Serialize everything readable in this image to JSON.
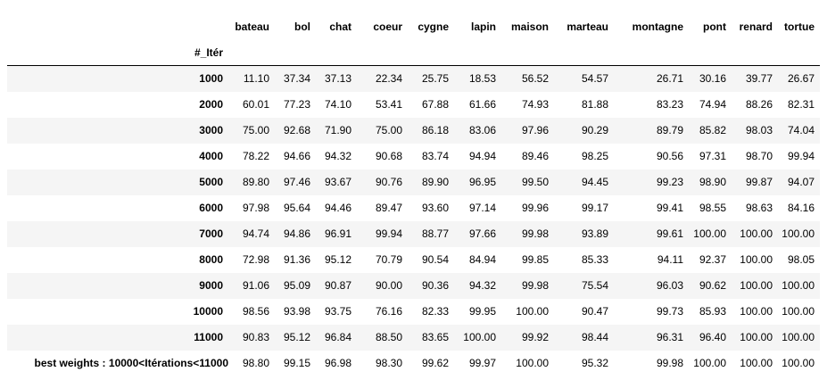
{
  "table": {
    "index_name": "#_Itér",
    "columns": [
      "bateau",
      "bol",
      "chat",
      "coeur",
      "cygne",
      "lapin",
      "maison",
      "marteau",
      "montagne",
      "pont",
      "renard",
      "tortue"
    ],
    "rows": [
      {
        "index": "1000",
        "values": [
          "11.10",
          "37.34",
          "37.13",
          "22.34",
          "25.75",
          "18.53",
          "56.52",
          "54.57",
          "26.71",
          "30.16",
          "39.77",
          "26.67"
        ]
      },
      {
        "index": "2000",
        "values": [
          "60.01",
          "77.23",
          "74.10",
          "53.41",
          "67.88",
          "61.66",
          "74.93",
          "81.88",
          "83.23",
          "74.94",
          "88.26",
          "82.31"
        ]
      },
      {
        "index": "3000",
        "values": [
          "75.00",
          "92.68",
          "71.90",
          "75.00",
          "86.18",
          "83.06",
          "97.96",
          "90.29",
          "89.79",
          "85.82",
          "98.03",
          "74.04"
        ]
      },
      {
        "index": "4000",
        "values": [
          "78.22",
          "94.66",
          "94.32",
          "90.68",
          "83.74",
          "94.94",
          "89.46",
          "98.25",
          "90.56",
          "97.31",
          "98.70",
          "99.94"
        ]
      },
      {
        "index": "5000",
        "values": [
          "89.80",
          "97.46",
          "93.67",
          "90.76",
          "89.90",
          "96.95",
          "99.50",
          "94.45",
          "99.23",
          "98.90",
          "99.87",
          "94.07"
        ]
      },
      {
        "index": "6000",
        "values": [
          "97.98",
          "95.64",
          "94.46",
          "89.47",
          "93.60",
          "97.14",
          "99.96",
          "99.17",
          "99.41",
          "98.55",
          "98.63",
          "84.16"
        ]
      },
      {
        "index": "7000",
        "values": [
          "94.74",
          "94.86",
          "96.91",
          "99.94",
          "88.77",
          "97.66",
          "99.98",
          "93.89",
          "99.61",
          "100.00",
          "100.00",
          "100.00"
        ]
      },
      {
        "index": "8000",
        "values": [
          "72.98",
          "91.36",
          "95.12",
          "70.79",
          "90.54",
          "84.94",
          "99.85",
          "85.33",
          "94.11",
          "92.37",
          "100.00",
          "98.05"
        ]
      },
      {
        "index": "9000",
        "values": [
          "91.06",
          "95.09",
          "90.87",
          "90.00",
          "90.36",
          "94.32",
          "99.98",
          "75.54",
          "96.03",
          "90.62",
          "100.00",
          "100.00"
        ]
      },
      {
        "index": "10000",
        "values": [
          "98.56",
          "93.98",
          "93.75",
          "76.16",
          "82.33",
          "99.95",
          "100.00",
          "90.47",
          "99.73",
          "85.93",
          "100.00",
          "100.00"
        ]
      },
      {
        "index": "11000",
        "values": [
          "90.83",
          "95.12",
          "96.84",
          "88.50",
          "83.65",
          "100.00",
          "99.92",
          "98.44",
          "96.31",
          "96.40",
          "100.00",
          "100.00"
        ]
      },
      {
        "index": "best weights : 10000<Itérations<11000",
        "values": [
          "98.80",
          "99.15",
          "96.98",
          "98.30",
          "99.62",
          "99.97",
          "100.00",
          "95.32",
          "99.98",
          "100.00",
          "100.00",
          "100.00"
        ]
      }
    ]
  }
}
